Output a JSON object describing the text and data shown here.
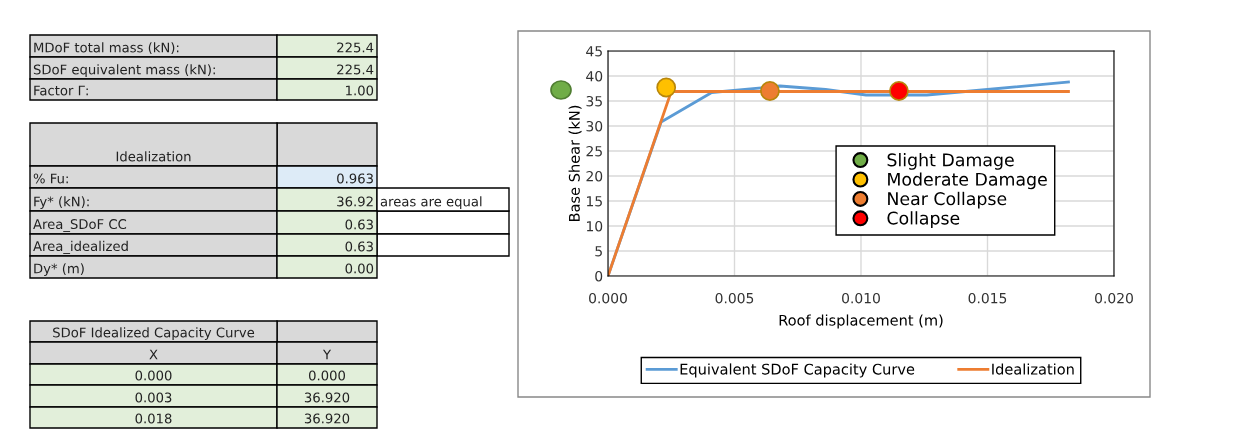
{
  "chart_data": [
    {
      "type": "other",
      "annotations": [
        "MDoF total mass (kN):",
        "225.4",
        "SDoF equivalent mass (kN):",
        "225.4",
        "Factor Γ:",
        "1.00",
        "Idealization",
        "% Fu:",
        "0.963",
        "Fy* (kN):",
        "36.92",
        "areas are equal",
        "Area_SDoF CC",
        "0.63",
        "Area_idealized",
        "0.63",
        "Dy* (m)",
        "0.00",
        "SDoF Idealized Capacity Curve",
        "X",
        "Y",
        "0.000",
        "0.000",
        "0.003",
        "36.920",
        "0.018",
        "36.920"
      ]
    },
    {
      "type": "line",
      "xlabel": "Roof displacement (m)",
      "ylabel": "Base Shear (kN)",
      "xlim": [
        0,
        0.02
      ],
      "ylim": [
        0,
        45
      ],
      "xticks": [
        {
          "value": 0,
          "label": "0.000"
        },
        {
          "value": 0.005,
          "label": "0.005"
        },
        {
          "value": 0.01,
          "label": "0.010"
        },
        {
          "value": 0.015,
          "label": "0.015"
        },
        {
          "value": 0.02,
          "label": "0.020"
        }
      ],
      "yticks": [
        0,
        5,
        10,
        15,
        20,
        25,
        30,
        35,
        40,
        45
      ],
      "grid": true,
      "legend": "bottom",
      "series": [
        {
          "name": "Equivalent SDoF Capacity Curve",
          "color": "#5b9bd5",
          "x": [
            0,
            0.0021,
            0.0041,
            0.0068,
            0.0086,
            0.0102,
            0.0126,
            0.015,
            0.0182
          ],
          "values": [
            0,
            30.8,
            36.7,
            38.0,
            37.3,
            36.2,
            36.2,
            37.3,
            38.8
          ]
        },
        {
          "name": "Idealization",
          "color": "#ed7d31",
          "x": [
            0,
            0.0025,
            0.0182
          ],
          "values": [
            0,
            36.9,
            36.9
          ]
        },
        {
          "name": "Slight Damage",
          "type": "scatter",
          "color": "#70ad47",
          "x": [
            null
          ],
          "values": [
            null
          ]
        },
        {
          "name": "Moderate Damage",
          "type": "scatter",
          "color": "#ffc000",
          "x": [
            0.0023
          ],
          "values": [
            37.7
          ]
        },
        {
          "name": "Near Collapse",
          "type": "scatter",
          "color": "#ed7d31",
          "x": [
            0.0064
          ],
          "values": [
            37.0
          ]
        },
        {
          "name": "Collapse",
          "type": "scatter",
          "color": "#ff0000",
          "x": [
            0.0115
          ],
          "values": [
            37.0
          ]
        }
      ]
    }
  ]
}
